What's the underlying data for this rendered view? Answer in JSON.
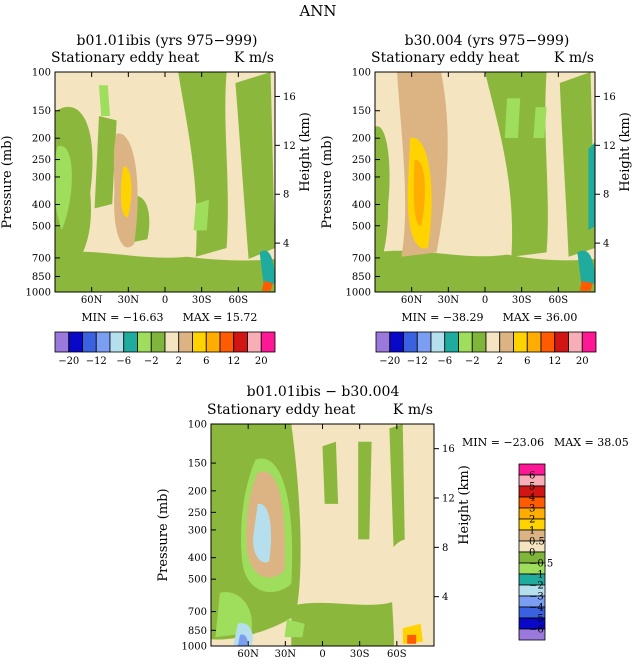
{
  "figure_title": "ANN",
  "palette": [
    "#9b79dc",
    "#0808c6",
    "#3a62e0",
    "#7c9ef2",
    "#b6dfee",
    "#1fab9e",
    "#9ede5c",
    "#7fb53a",
    "#f4e4c0",
    "#dcb483",
    "#ffd300",
    "#ffad00",
    "#ff5b00",
    "#d11414",
    "#f8aeb6",
    "#ff1895"
  ],
  "colors": {
    "bg_positive": "#f4e4c0",
    "bg_negative": "#8bb83c"
  },
  "chart_data": [
    {
      "type": "heatmap",
      "id": "top-left",
      "title": "b01.01ibis (yrs 975−999)",
      "subtitle_left": "Stationary eddy heat",
      "subtitle_right": "K m/s",
      "ylabel": "Pressure (mb)",
      "y2label": "Height (km)",
      "x_ticks": [
        "60N",
        "30N",
        "0",
        "30S",
        "60S"
      ],
      "x_tick_values": [
        60,
        30,
        0,
        -30,
        -60
      ],
      "xlim": [
        90,
        -90
      ],
      "y_ticks": [
        "100",
        "150",
        "200",
        "250",
        "300",
        "400",
        "500",
        "700",
        "850",
        "1000"
      ],
      "y_tick_values": [
        100,
        150,
        200,
        250,
        300,
        400,
        500,
        700,
        850,
        1000
      ],
      "ylim": [
        100,
        1000
      ],
      "y_scale": "log",
      "y2_ticks": [
        "16",
        "12",
        "8",
        "4"
      ],
      "y2_tick_values": [
        16,
        12,
        8,
        4
      ],
      "min_label": "MIN = −16.63",
      "max_label": "MAX = 15.72",
      "min": -16.63,
      "max": 15.72,
      "colorbar": {
        "orientation": "horizontal",
        "labels": [
          "−20",
          "−12",
          "−6",
          "−2",
          "2",
          "6",
          "12",
          "20"
        ],
        "levels": [
          -20,
          -16,
          -12,
          -8,
          -6,
          -4,
          -2,
          -1,
          1,
          2,
          4,
          6,
          8,
          12,
          16,
          20
        ]
      }
    },
    {
      "type": "heatmap",
      "id": "top-right",
      "title": "b30.004 (yrs 975−999)",
      "subtitle_left": "Stationary eddy heat",
      "subtitle_right": "K m/s",
      "ylabel": "Pressure (mb)",
      "y2label": "Height (km)",
      "x_ticks": [
        "60N",
        "30N",
        "0",
        "30S",
        "60S"
      ],
      "x_tick_values": [
        60,
        30,
        0,
        -30,
        -60
      ],
      "xlim": [
        90,
        -90
      ],
      "y_ticks": [
        "100",
        "150",
        "200",
        "250",
        "300",
        "400",
        "500",
        "700",
        "850",
        "1000"
      ],
      "y_tick_values": [
        100,
        150,
        200,
        250,
        300,
        400,
        500,
        700,
        850,
        1000
      ],
      "ylim": [
        100,
        1000
      ],
      "y_scale": "log",
      "y2_ticks": [
        "16",
        "12",
        "8",
        "4"
      ],
      "y2_tick_values": [
        16,
        12,
        8,
        4
      ],
      "min_label": "MIN = −38.29",
      "max_label": "MAX = 36.00",
      "min": -38.29,
      "max": 36.0,
      "colorbar": {
        "orientation": "horizontal",
        "labels": [
          "−20",
          "−12",
          "−6",
          "−2",
          "2",
          "6",
          "12",
          "20"
        ],
        "levels": [
          -20,
          -16,
          -12,
          -8,
          -6,
          -4,
          -2,
          -1,
          1,
          2,
          4,
          6,
          8,
          12,
          16,
          20
        ]
      }
    },
    {
      "type": "heatmap",
      "id": "bottom",
      "title": "b01.01ibis − b30.004",
      "subtitle_left": "Stationary eddy heat",
      "subtitle_right": "K m/s",
      "ylabel": "Pressure (mb)",
      "y2label": "Height (km)",
      "x_ticks": [
        "60N",
        "30N",
        "0",
        "30S",
        "60S"
      ],
      "x_tick_values": [
        60,
        30,
        0,
        -30,
        -60
      ],
      "xlim": [
        90,
        -90
      ],
      "y_ticks": [
        "100",
        "150",
        "200",
        "250",
        "300",
        "400",
        "500",
        "700",
        "850",
        "1000"
      ],
      "y_tick_values": [
        100,
        150,
        200,
        250,
        300,
        400,
        500,
        700,
        850,
        1000
      ],
      "ylim": [
        100,
        1000
      ],
      "y_scale": "log",
      "y2_ticks": [
        "16",
        "12",
        "8",
        "4"
      ],
      "y2_tick_values": [
        16,
        12,
        8,
        4
      ],
      "min_label": "MIN = −23.06",
      "max_label": "MAX = 38.05",
      "min": -23.06,
      "max": 38.05,
      "colorbar": {
        "orientation": "vertical",
        "labels": [
          "6",
          "5",
          "4",
          "3",
          "2",
          "1",
          "0.5",
          "0",
          "−0.5",
          "−1",
          "−2",
          "−3",
          "−4",
          "−5",
          "−6"
        ],
        "levels": [
          6,
          5,
          4,
          3,
          2,
          1,
          0.5,
          0,
          -0.5,
          -1,
          -2,
          -3,
          -4,
          -5,
          -6
        ]
      }
    }
  ]
}
